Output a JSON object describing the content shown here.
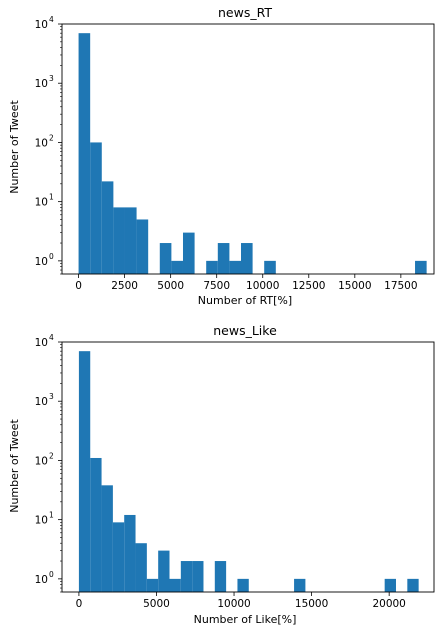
{
  "chart_data": [
    {
      "type": "bar",
      "title": "news_RT",
      "xlabel": "Number of RT[%]",
      "ylabel": "Number of Tweet",
      "y_scale": "log",
      "ylim": [
        0.6,
        10000
      ],
      "xlim": [
        -900,
        19300
      ],
      "x_ticks": [
        "0",
        "2500",
        "5000",
        "7500",
        "10000",
        "12500",
        "15000",
        "17500"
      ],
      "y_ticks": [
        "10",
        "10",
        "10",
        "10",
        "10"
      ],
      "y_tick_exponents": [
        "0",
        "1",
        "2",
        "3",
        "4"
      ],
      "bin_edges": [
        0,
        630,
        1260,
        1890,
        2520,
        3150,
        3780,
        4410,
        5040,
        5670,
        6300,
        6930,
        7560,
        8190,
        8820,
        9450,
        10080,
        10710,
        11340,
        11970,
        12600,
        13230,
        13860,
        14490,
        15120,
        15750,
        16380,
        17010,
        17640,
        18270,
        18900
      ],
      "values": [
        7000,
        100,
        22,
        8,
        8,
        5,
        0,
        2,
        1,
        3,
        0,
        1,
        2,
        1,
        2,
        0,
        1,
        0,
        0,
        0,
        0,
        0,
        0,
        0,
        0,
        0,
        0,
        0,
        0,
        1
      ],
      "bar_color": "#1f77b4"
    },
    {
      "type": "bar",
      "title": "news_Like",
      "xlabel": "Number of Like[%]",
      "ylabel": "Number of Tweet",
      "y_scale": "log",
      "ylim": [
        0.6,
        10000
      ],
      "xlim": [
        -1090,
        22890
      ],
      "x_ticks": [
        "0",
        "5000",
        "10000",
        "15000",
        "20000"
      ],
      "y_ticks": [
        "10",
        "10",
        "10",
        "10",
        "10"
      ],
      "y_tick_exponents": [
        "0",
        "1",
        "2",
        "3",
        "4"
      ],
      "bin_edges": [
        0,
        730,
        1460,
        2190,
        2920,
        3650,
        4380,
        5110,
        5840,
        6570,
        7300,
        8030,
        8760,
        9490,
        10220,
        10950,
        11680,
        12410,
        13140,
        13870,
        14600,
        15330,
        16060,
        16790,
        17520,
        18250,
        18980,
        19710,
        20440,
        21170,
        21900
      ],
      "values": [
        7000,
        110,
        38,
        9,
        12,
        4,
        1,
        3,
        1,
        2,
        2,
        0,
        2,
        0,
        1,
        0,
        0,
        0,
        0,
        1,
        0,
        0,
        0,
        0,
        0,
        0,
        0,
        1,
        0,
        1
      ],
      "bar_color": "#1f77b4"
    }
  ]
}
